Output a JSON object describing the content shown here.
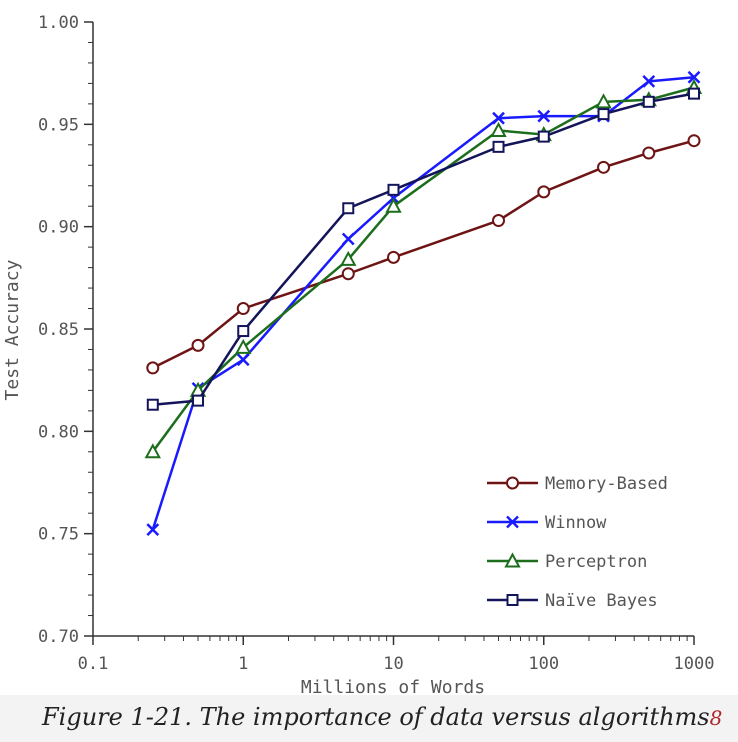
{
  "chart_data": {
    "type": "line",
    "xscale": "log",
    "ylabel": "Test Accuracy",
    "xlabel": "Millions of Words",
    "xlim": [
      0.1,
      1000
    ],
    "ylim": [
      0.7,
      1.0
    ],
    "x_ticks": [
      0.1,
      1,
      10,
      100,
      1000
    ],
    "x_tick_labels": [
      "0.1",
      "1",
      "10",
      "100",
      "1000"
    ],
    "y_ticks": [
      0.7,
      0.75,
      0.8,
      0.85,
      0.9,
      0.95,
      1.0
    ],
    "y_tick_labels": [
      "0.70",
      "0.75",
      "0.80",
      "0.85",
      "0.90",
      "0.95",
      "1.00"
    ],
    "grid": false,
    "legend_position": "bottom-right",
    "series": [
      {
        "name": "Memory-Based",
        "color": "#6e1414",
        "marker": "circle",
        "x": [
          0.25,
          0.5,
          1,
          5,
          10,
          50,
          100,
          250,
          500,
          1000
        ],
        "y": [
          0.831,
          0.842,
          0.86,
          0.877,
          0.885,
          0.903,
          0.917,
          0.929,
          0.936,
          0.942
        ]
      },
      {
        "name": "Winnow",
        "color": "#1a1aff",
        "marker": "x",
        "x": [
          0.25,
          0.5,
          1,
          5,
          10,
          50,
          100,
          250,
          500,
          1000
        ],
        "y": [
          0.752,
          0.821,
          0.835,
          0.894,
          0.914,
          0.953,
          0.954,
          0.954,
          0.971,
          0.973
        ]
      },
      {
        "name": "Perceptron",
        "color": "#1c6e1c",
        "marker": "triangle",
        "x": [
          0.25,
          0.5,
          1,
          5,
          10,
          50,
          100,
          250,
          500,
          1000
        ],
        "y": [
          0.79,
          0.82,
          0.841,
          0.884,
          0.91,
          0.947,
          0.945,
          0.961,
          0.962,
          0.968
        ]
      },
      {
        "name": "Naïve Bayes",
        "color": "#14145a",
        "marker": "square",
        "x": [
          0.25,
          0.5,
          1,
          5,
          10,
          50,
          100,
          250,
          500,
          1000
        ],
        "y": [
          0.813,
          0.815,
          0.849,
          0.909,
          0.918,
          0.939,
          0.944,
          0.955,
          0.961,
          0.965
        ]
      }
    ]
  },
  "caption": {
    "text": "Figure 1-21. The importance of data versus algorithms",
    "reference": "8"
  }
}
